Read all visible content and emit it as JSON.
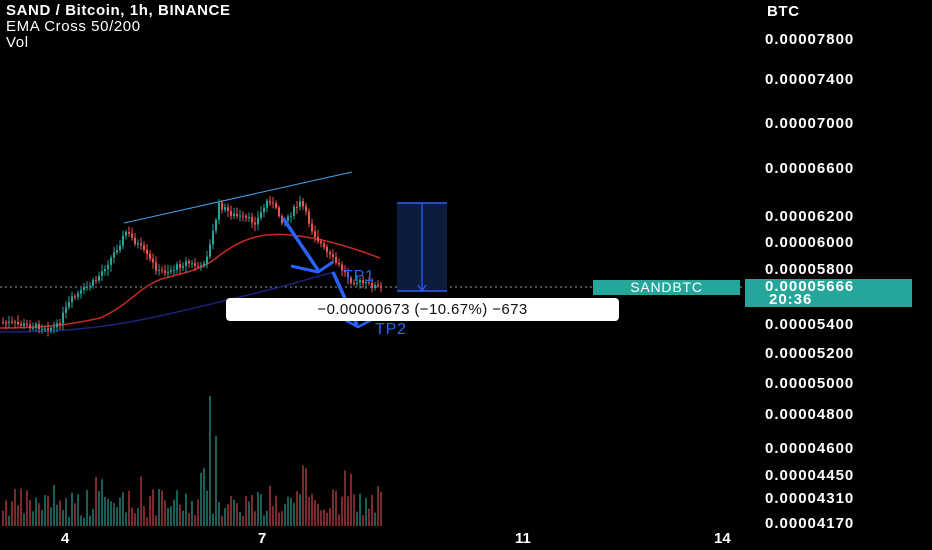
{
  "legend": {
    "title": "SAND / Bitcoin, 1h, BINANCE",
    "indicator": "EMA Cross 50/200",
    "volume": "Vol"
  },
  "price_axis": {
    "unit": "BTC",
    "ticks": [
      "0.00007800",
      "0.00007400",
      "0.00007000",
      "0.00006600",
      "0.00006200",
      "0.00006000",
      "0.00005800",
      "0.00005400",
      "0.00005200",
      "0.00005000",
      "0.00004800",
      "0.00004600",
      "0.00004450",
      "0.00004310",
      "0.00004170"
    ]
  },
  "time_axis": {
    "ticks": [
      "4",
      "7",
      "11",
      "14"
    ]
  },
  "symbol_tag": "SANDBTC",
  "last_price": {
    "value": "0.00005666",
    "countdown": "20:36"
  },
  "measure_tooltip": "−0.00000673 (−10.67%) −673",
  "annotations": {
    "tp1": "TP1",
    "tp2": "TP2"
  },
  "colors": {
    "background": "#000000",
    "up": "#26a69a",
    "down": "#ef5350",
    "ema50": "#c62828",
    "ema200": "#1a237e",
    "drawing": "#2962ff",
    "measure_fill": "#0d1b3d"
  }
}
